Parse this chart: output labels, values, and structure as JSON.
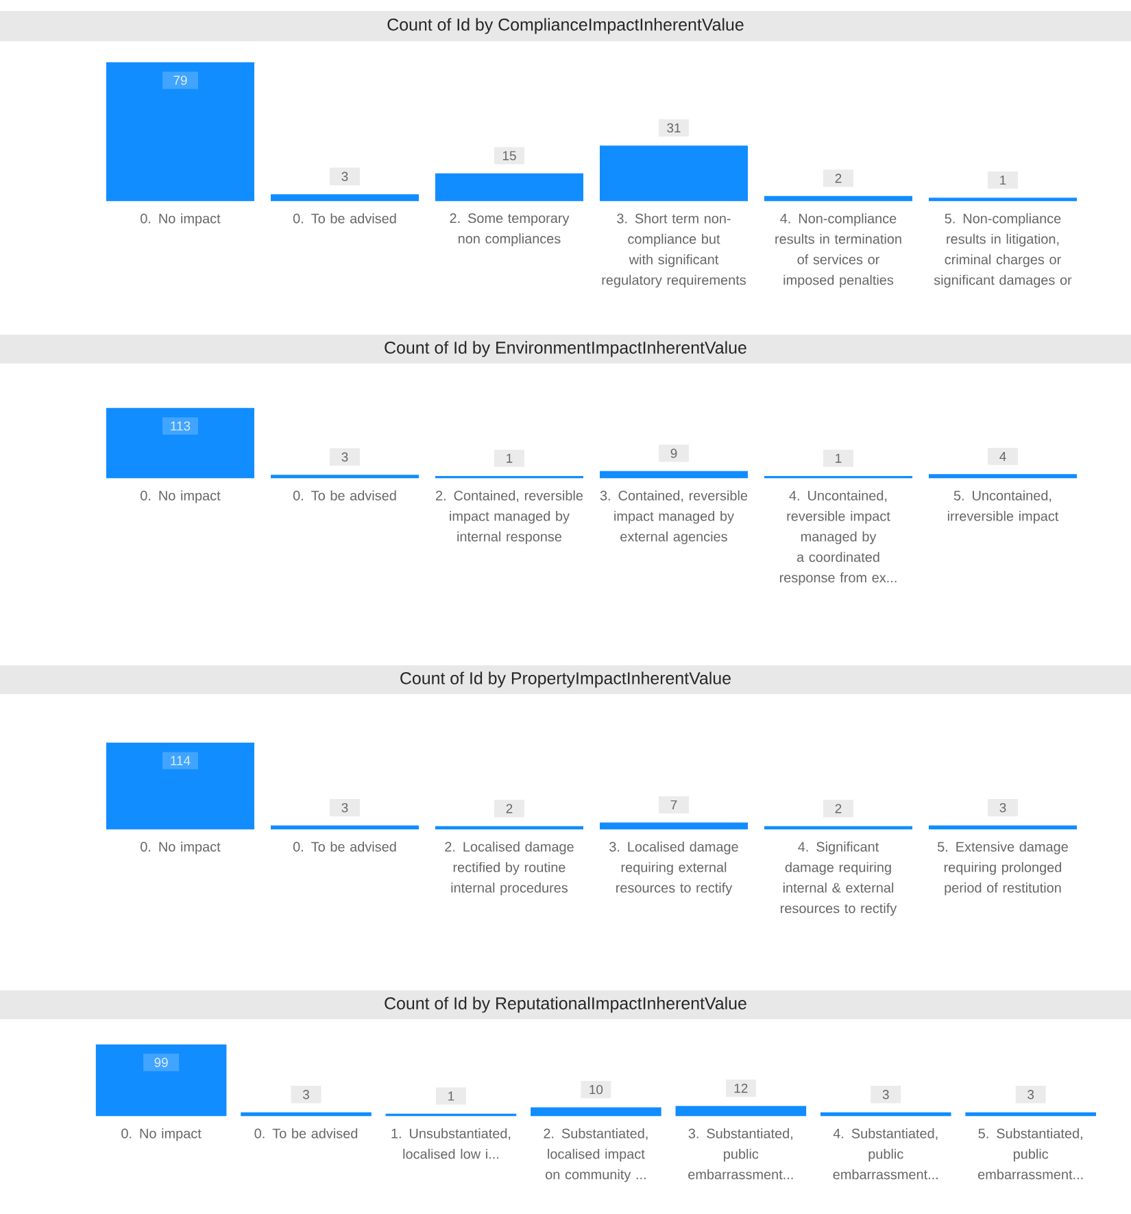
{
  "chart_data": [
    {
      "type": "bar",
      "title": "Count of Id by ComplianceImpactInherentValue",
      "categories": [
        "0. No impact",
        "0. To be advised",
        "2. Some temporary non compliances",
        "3. Short term non-compliance but with significant regulatory requirements",
        "4. Non-compliance results in termination of services or imposed penalties",
        "5. Non-compliance results in litigation, criminal charges or significant damages or"
      ],
      "values": [
        79,
        3,
        15,
        31,
        2,
        1
      ],
      "color": "#118dff",
      "data_labels": true
    },
    {
      "type": "bar",
      "title": "Count of Id by EnvironmentImpactInherentValue",
      "categories": [
        "0. No impact",
        "0. To be advised",
        "2. Contained, reversible impact managed by internal response",
        "3. Contained, reversible impact managed by external agencies",
        "4. Uncontained, reversible impact managed by a coordinated response from ex...",
        "5. Uncontained, irreversible impact"
      ],
      "values": [
        113,
        3,
        1,
        9,
        1,
        4
      ],
      "color": "#118dff",
      "data_labels": true
    },
    {
      "type": "bar",
      "title": "Count of Id by PropertyImpactInherentValue",
      "categories": [
        "0. No impact",
        "0. To be advised",
        "2. Localised damage rectified by routine internal procedures",
        "3. Localised damage requiring external resources to rectify",
        "4. Significant damage requiring internal & external resources to rectify",
        "5. Extensive damage requiring prolonged period of restitution"
      ],
      "values": [
        114,
        3,
        2,
        7,
        2,
        3
      ],
      "color": "#118dff",
      "data_labels": true
    },
    {
      "type": "bar",
      "title": "Count of Id by ReputationalImpactInherentValue",
      "categories": [
        "0. No impact",
        "0. To be advised",
        "1. Unsubstantiated, localised low i...",
        "2. Substantiated, localised impact on community ...",
        "3. Substantiated, public embarrassment...",
        "4. Substantiated, public embarrassment...",
        "5. Substantiated, public embarrassment..."
      ],
      "values": [
        99,
        3,
        1,
        10,
        12,
        3,
        3
      ],
      "color": "#118dff",
      "data_labels": true
    }
  ]
}
